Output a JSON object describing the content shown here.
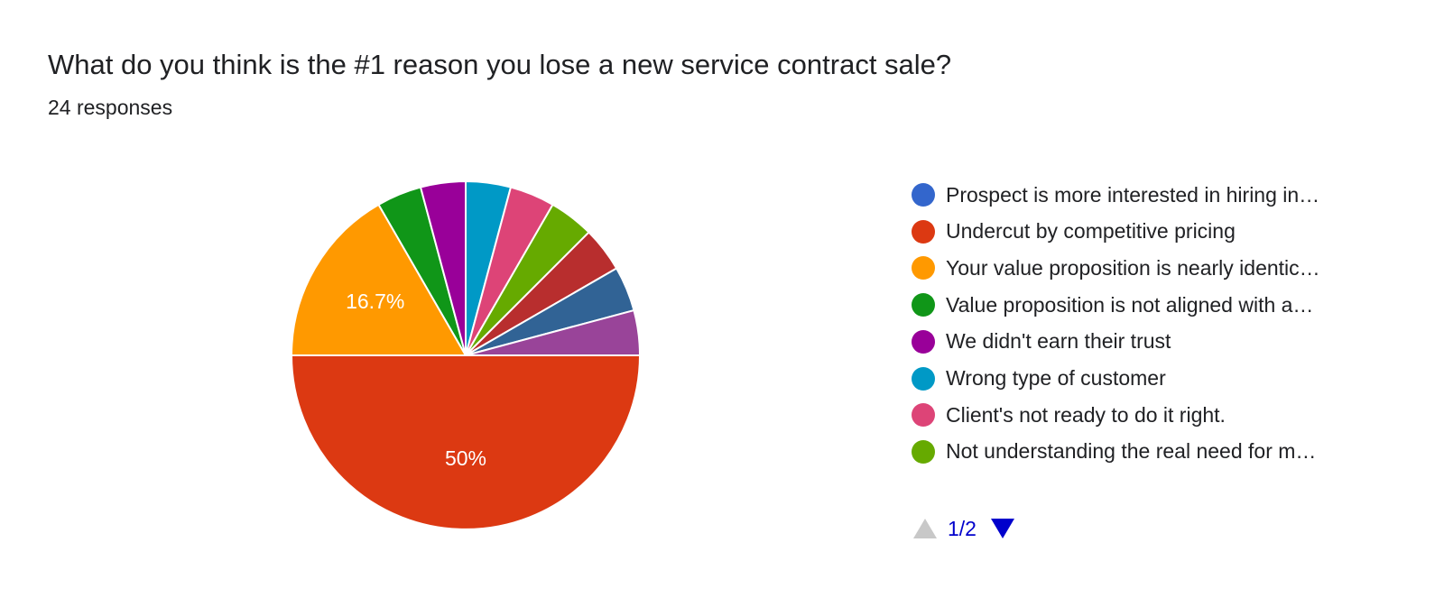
{
  "question": {
    "title": "What do you think is the #1 reason you lose a new service contract sale?",
    "responses": "24 responses"
  },
  "chart_data": {
    "type": "pie",
    "title": "What do you think is the #1 reason you lose a new service contract sale?",
    "total_responses": 24,
    "slices": [
      {
        "label": "Undercut by competitive pricing",
        "value": 12,
        "percent_label": "50%",
        "color": "#dc3912"
      },
      {
        "label": "Your value proposition is nearly identic…",
        "value": 4,
        "percent_label": "16.7%",
        "color": "#ff9900"
      },
      {
        "label": "Value proposition is not aligned with a…",
        "value": 1,
        "percent_label": "",
        "color": "#109618"
      },
      {
        "label": "We didn't earn their trust",
        "value": 1,
        "percent_label": "",
        "color": "#990099"
      },
      {
        "label": "Wrong type of customer",
        "value": 1,
        "percent_label": "",
        "color": "#0099c6"
      },
      {
        "label": "Client's not ready to do it right.",
        "value": 1,
        "percent_label": "",
        "color": "#dd4477"
      },
      {
        "label": "Not understanding the real need for m…",
        "value": 1,
        "percent_label": "",
        "color": "#66aa00"
      },
      {
        "label": "",
        "value": 1,
        "percent_label": "",
        "color": "#b82e2e"
      },
      {
        "label": "",
        "value": 1,
        "percent_label": "",
        "color": "#316395"
      },
      {
        "label": "",
        "value": 1,
        "percent_label": "",
        "color": "#994499"
      },
      {
        "label": "Prospect is more interested in hiring in…",
        "value": 0,
        "percent_label": "",
        "color": "#3366cc"
      }
    ],
    "legend_position": "right"
  },
  "legend": {
    "items": [
      {
        "label": "Prospect is more interested in hiring in…",
        "color": "#3366cc"
      },
      {
        "label": "Undercut by competitive pricing",
        "color": "#dc3912"
      },
      {
        "label": "Your value proposition is nearly identic…",
        "color": "#ff9900"
      },
      {
        "label": "Value proposition is not aligned with a…",
        "color": "#109618"
      },
      {
        "label": "We didn't earn their trust",
        "color": "#990099"
      },
      {
        "label": "Wrong type of customer",
        "color": "#0099c6"
      },
      {
        "label": "Client's not ready to do it right.",
        "color": "#dd4477"
      },
      {
        "label": "Not understanding the real need for m…",
        "color": "#66aa00"
      }
    ]
  },
  "pager": {
    "text": "1/2",
    "prev_icon": "triangle-up-icon",
    "next_icon": "triangle-down-icon"
  }
}
